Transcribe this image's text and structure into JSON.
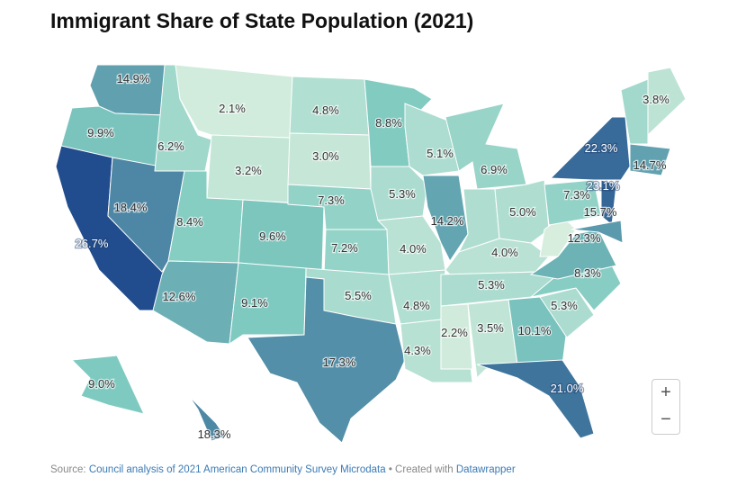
{
  "title": "Immigrant Share of State Population (2021)",
  "footer": {
    "source_prefix": "Source: ",
    "source_link": "Council analysis of 2021 American Community Survey Microdata",
    "separator": " • Created with ",
    "tool_link": "Datawrapper"
  },
  "zoom_controls": {
    "zoom_in": "+",
    "zoom_out": "−"
  },
  "colors": {
    "low": "#eaf6e4",
    "mid": "#7fcac0",
    "high": "#1f4a8c"
  },
  "states": {
    "WA": "14.9%",
    "OR": "9.9%",
    "CA": "26.7%",
    "NV": "18.4%",
    "ID": "6.2%",
    "MT": "2.1%",
    "WY": "3.2%",
    "UT": "8.4%",
    "CO": "9.6%",
    "AZ": "12.6%",
    "NM": "9.1%",
    "ND": "4.8%",
    "SD": "3.0%",
    "NE": "7.3%",
    "KS": "7.2%",
    "OK": "5.5%",
    "TX": "17.3%",
    "MN": "8.8%",
    "IA": "5.3%",
    "MO": "4.0%",
    "AR": "4.8%",
    "LA": "4.3%",
    "WI": "5.1%",
    "IL": "14.2%",
    "MI": "6.9%",
    "IN": "",
    "OH": "5.0%",
    "KY": "4.0%",
    "TN": "5.3%",
    "MS": "2.2%",
    "AL": "3.5%",
    "GA": "10.1%",
    "FL": "21.0%",
    "SC": "5.3%",
    "NC": "8.3%",
    "VA": "12.3%",
    "WV": "",
    "PA": "7.3%",
    "NY": "22.3%",
    "NJ": "23.1%",
    "MD": "15.7%",
    "MA": "14.7%",
    "NH": "",
    "ME": "3.8%",
    "AK": "9.0%",
    "HI": "18.3%"
  },
  "unlabeled_values": {
    "IN": 5.0,
    "WV": 1.6,
    "NH": 6.0
  }
}
